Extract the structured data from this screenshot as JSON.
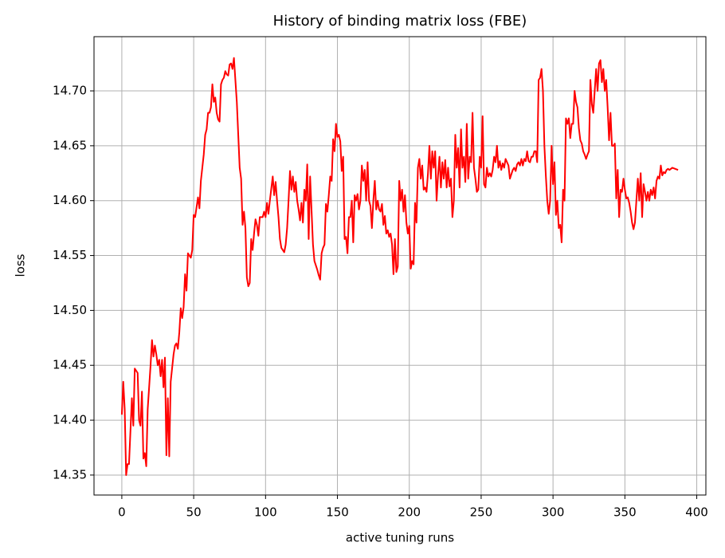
{
  "chart_data": {
    "type": "line",
    "title": "History of binding matrix loss (FBE)",
    "xlabel": "active tuning runs",
    "ylabel": "loss",
    "color": "#ff0000",
    "grid": true,
    "xlim": [
      -19.35,
      406.35
    ],
    "ylim": [
      14.3318,
      14.7494
    ],
    "xticks": [
      0,
      50,
      100,
      150,
      200,
      250,
      300,
      350,
      400
    ],
    "yticks": [
      14.35,
      {
        "value": 14.4,
        "label": "14.40"
      },
      14.45,
      {
        "value": 14.5,
        "label": "14.50"
      },
      14.55,
      {
        "value": 14.6,
        "label": "14.60"
      },
      14.65,
      {
        "value": 14.7,
        "label": "14.70"
      }
    ],
    "x": [
      0,
      1,
      2,
      3,
      4,
      5,
      6,
      7,
      8,
      9,
      10,
      11,
      12,
      13,
      14,
      15,
      16,
      17,
      18,
      20,
      21,
      22,
      23,
      24,
      25,
      26,
      27,
      28,
      29,
      30,
      31,
      32,
      33,
      34,
      36,
      37,
      38,
      39,
      40,
      41,
      42,
      43,
      44,
      45,
      46,
      47,
      48,
      49,
      50,
      51,
      52,
      53,
      54,
      55,
      56,
      57,
      58,
      59,
      60,
      61,
      62,
      63,
      64,
      65,
      66,
      67,
      68,
      69,
      70,
      71,
      72,
      73,
      74,
      75,
      76,
      77,
      78,
      79,
      80,
      81,
      82,
      83,
      84,
      85,
      86,
      87,
      88,
      89,
      90,
      91,
      92,
      93,
      94,
      95,
      96,
      98,
      99,
      100,
      101,
      102,
      103,
      105,
      106,
      107,
      108,
      109,
      110,
      111,
      112,
      113,
      114,
      115,
      116,
      117,
      118,
      119,
      120,
      121,
      122,
      123,
      124,
      125,
      126,
      127,
      128,
      129,
      130,
      131,
      133,
      134,
      136,
      137,
      138,
      139,
      140,
      141,
      142,
      143,
      144,
      145,
      146,
      147,
      148,
      149,
      150,
      151,
      152,
      153,
      154,
      155,
      156,
      157,
      158,
      159,
      160,
      161,
      162,
      163,
      164,
      165,
      166,
      167,
      168,
      169,
      170,
      171,
      172,
      173,
      174,
      175,
      176,
      177,
      178,
      179,
      180,
      181,
      182,
      183,
      184,
      185,
      186,
      187,
      188,
      189,
      190,
      191,
      192,
      193,
      194,
      195,
      196,
      197,
      198,
      199,
      200,
      201,
      202,
      203,
      204,
      205,
      206,
      207,
      208,
      209,
      210,
      211,
      212,
      213,
      214,
      215,
      216,
      217,
      218,
      219,
      220,
      221,
      222,
      223,
      224,
      225,
      226,
      227,
      228,
      229,
      230,
      231,
      232,
      233,
      234,
      235,
      236,
      237,
      238,
      239,
      240,
      241,
      242,
      243,
      244,
      245,
      246,
      247,
      248,
      249,
      250,
      251,
      252,
      253,
      254,
      255,
      256,
      257,
      258,
      259,
      260,
      261,
      262,
      263,
      264,
      265,
      266,
      267,
      268,
      269,
      270,
      272,
      273,
      274,
      275,
      276,
      277,
      278,
      279,
      280,
      281,
      282,
      283,
      284,
      285,
      286,
      287,
      288,
      289,
      290,
      291,
      292,
      293,
      294,
      295,
      296,
      297,
      298,
      299,
      300,
      301,
      302,
      303,
      304,
      305,
      306,
      307,
      308,
      309,
      310,
      311,
      312,
      313,
      314,
      315,
      316,
      317,
      318,
      319,
      320,
      321,
      322,
      323,
      324,
      325,
      326,
      327,
      328,
      329,
      330,
      331,
      332,
      333,
      334,
      335,
      336,
      337,
      338,
      339,
      340,
      341,
      342,
      343,
      344,
      345,
      346,
      347,
      348,
      349,
      350,
      351,
      352,
      353,
      354,
      355,
      356,
      357,
      358,
      359,
      360,
      361,
      362,
      363,
      364,
      365,
      366,
      367,
      368,
      369,
      370,
      371,
      372,
      373,
      374,
      375,
      376,
      377,
      378,
      379,
      380,
      381,
      383,
      385,
      387
    ],
    "values": [
      14.405,
      14.435,
      14.41,
      14.35,
      14.36,
      14.36,
      14.39,
      14.42,
      14.395,
      14.447,
      14.445,
      14.443,
      14.4,
      14.395,
      14.426,
      14.365,
      14.37,
      14.358,
      14.41,
      14.45,
      14.473,
      14.458,
      14.468,
      14.46,
      14.45,
      14.455,
      14.44,
      14.455,
      14.43,
      14.457,
      14.368,
      14.42,
      14.367,
      14.435,
      14.46,
      14.468,
      14.47,
      14.465,
      14.48,
      14.502,
      14.493,
      14.503,
      14.533,
      14.518,
      14.552,
      14.55,
      14.548,
      14.555,
      14.587,
      14.585,
      14.594,
      14.603,
      14.593,
      14.618,
      14.63,
      14.642,
      14.66,
      14.665,
      14.68,
      14.68,
      14.685,
      14.706,
      14.69,
      14.694,
      14.68,
      14.674,
      14.672,
      14.706,
      14.71,
      14.712,
      14.718,
      14.715,
      14.714,
      14.724,
      14.725,
      14.72,
      14.73,
      14.71,
      14.69,
      14.66,
      14.63,
      14.62,
      14.578,
      14.59,
      14.575,
      14.53,
      14.522,
      14.525,
      14.565,
      14.555,
      14.57,
      14.583,
      14.578,
      14.568,
      14.585,
      14.585,
      14.59,
      14.585,
      14.598,
      14.588,
      14.6,
      14.622,
      14.605,
      14.617,
      14.6,
      14.585,
      14.565,
      14.557,
      14.555,
      14.553,
      14.56,
      14.575,
      14.6,
      14.627,
      14.61,
      14.622,
      14.608,
      14.617,
      14.6,
      14.592,
      14.582,
      14.598,
      14.58,
      14.61,
      14.6,
      14.633,
      14.565,
      14.622,
      14.56,
      14.545,
      14.537,
      14.532,
      14.528,
      14.552,
      14.557,
      14.56,
      14.597,
      14.59,
      14.605,
      14.622,
      14.618,
      14.656,
      14.645,
      14.67,
      14.658,
      14.66,
      14.654,
      14.627,
      14.64,
      14.565,
      14.567,
      14.552,
      14.585,
      14.585,
      14.6,
      14.562,
      14.605,
      14.6,
      14.606,
      14.592,
      14.6,
      14.632,
      14.618,
      14.628,
      14.6,
      14.635,
      14.6,
      14.595,
      14.575,
      14.6,
      14.618,
      14.592,
      14.6,
      14.592,
      14.59,
      14.597,
      14.578,
      14.586,
      14.57,
      14.573,
      14.567,
      14.57,
      14.56,
      14.533,
      14.565,
      14.535,
      14.54,
      14.618,
      14.6,
      14.61,
      14.59,
      14.605,
      14.58,
      14.57,
      14.577,
      14.538,
      14.545,
      14.542,
      14.598,
      14.58,
      14.63,
      14.638,
      14.62,
      14.632,
      14.61,
      14.612,
      14.608,
      14.625,
      14.65,
      14.62,
      14.645,
      14.63,
      14.645,
      14.6,
      14.623,
      14.64,
      14.612,
      14.635,
      14.62,
      14.637,
      14.612,
      14.63,
      14.613,
      14.62,
      14.585,
      14.6,
      14.66,
      14.63,
      14.648,
      14.612,
      14.665,
      14.63,
      14.64,
      14.617,
      14.67,
      14.62,
      14.64,
      14.635,
      14.68,
      14.63,
      14.62,
      14.608,
      14.61,
      14.64,
      14.63,
      14.677,
      14.615,
      14.612,
      14.63,
      14.622,
      14.625,
      14.622,
      14.628,
      14.64,
      14.635,
      14.65,
      14.63,
      14.636,
      14.628,
      14.634,
      14.63,
      14.638,
      14.635,
      14.632,
      14.62,
      14.628,
      14.63,
      14.627,
      14.633,
      14.635,
      14.632,
      14.638,
      14.632,
      14.638,
      14.636,
      14.645,
      14.636,
      14.635,
      14.64,
      14.64,
      14.645,
      14.645,
      14.635,
      14.71,
      14.712,
      14.72,
      14.7,
      14.65,
      14.623,
      14.6,
      14.588,
      14.6,
      14.65,
      14.615,
      14.635,
      14.587,
      14.6,
      14.575,
      14.578,
      14.562,
      14.61,
      14.6,
      14.675,
      14.67,
      14.675,
      14.657,
      14.67,
      14.67,
      14.7,
      14.69,
      14.685,
      14.666,
      14.655,
      14.652,
      14.645,
      14.642,
      14.638,
      14.642,
      14.645,
      14.71,
      14.688,
      14.68,
      14.7,
      14.72,
      14.7,
      14.725,
      14.728,
      14.708,
      14.72,
      14.7,
      14.71,
      14.685,
      14.655,
      14.68,
      14.65,
      14.65,
      14.652,
      14.602,
      14.628,
      14.585,
      14.61,
      14.608,
      14.62,
      14.61,
      14.602,
      14.603,
      14.598,
      14.59,
      14.58,
      14.574,
      14.58,
      14.6,
      14.62,
      14.6,
      14.625,
      14.585,
      14.615,
      14.608,
      14.6,
      14.608,
      14.6,
      14.61,
      14.605,
      14.612,
      14.602,
      14.618,
      14.622,
      14.62,
      14.632,
      14.623,
      14.626,
      14.625,
      14.628,
      14.629,
      14.628,
      14.63,
      14.629,
      14.628
    ]
  }
}
